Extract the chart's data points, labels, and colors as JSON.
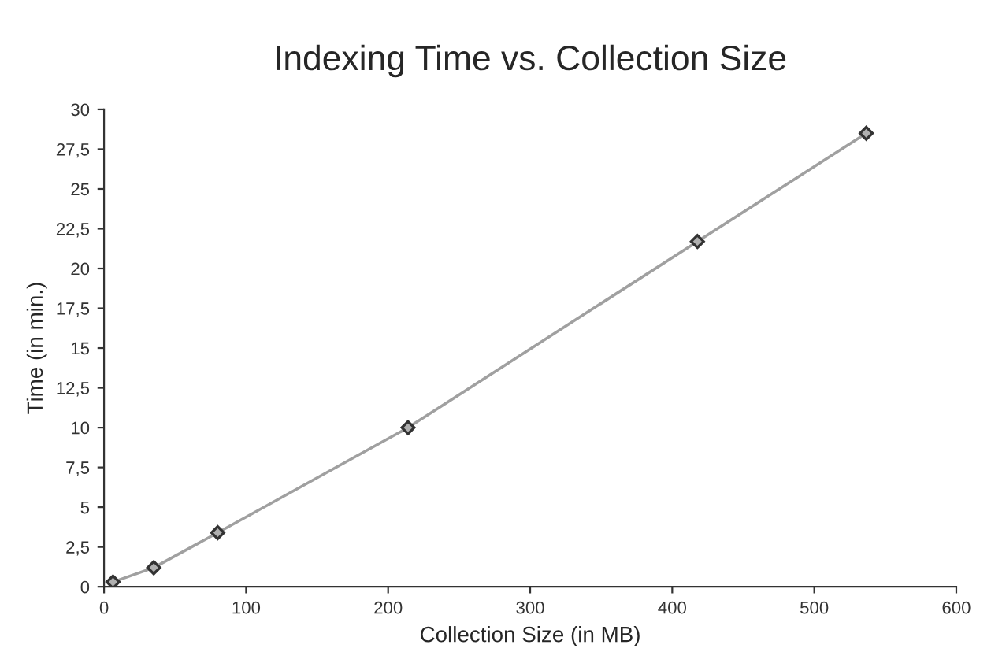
{
  "chart_data": {
    "type": "line",
    "title": "Indexing Time vs. Collection Size",
    "xlabel": "Collection Size (in MB)",
    "ylabel": "Time (in min.)",
    "x": [
      6.3,
      35,
      80,
      214,
      417.7,
      536.6
    ],
    "series": [
      {
        "color": "#a0a0a0",
        "values": [
          0.3,
          1.2,
          3.4,
          10,
          21.7,
          28.5
        ]
      }
    ],
    "xlim": [
      0,
      600
    ],
    "xticks": [
      0,
      100,
      200,
      300,
      400,
      500,
      600
    ],
    "ylim": [
      0,
      30
    ],
    "yticks": [
      0,
      {
        "value": 2.5,
        "label": "2,5"
      },
      5,
      {
        "value": 7.5,
        "label": "7,5"
      },
      10,
      {
        "value": 12.5,
        "label": "12,5"
      },
      15,
      {
        "value": 17.5,
        "label": "17,5"
      },
      20,
      {
        "value": 22.5,
        "label": "22,5"
      },
      25,
      {
        "value": 27.5,
        "label": "27,5"
      },
      30
    ],
    "grid": false,
    "marker": "diamond",
    "line_style": "solid"
  }
}
